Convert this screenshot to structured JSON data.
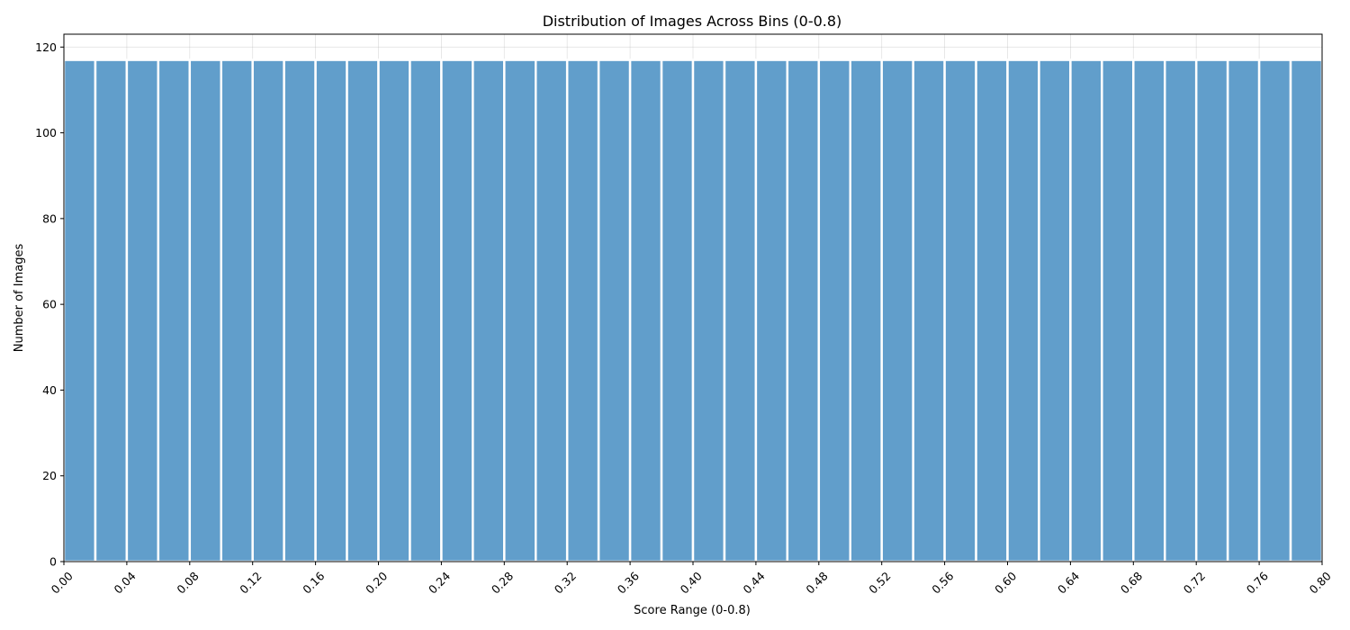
{
  "chart_data": {
    "type": "bar",
    "title": "Distribution of Images Across Bins (0-0.8)",
    "xlabel": "Score Range (0-0.8)",
    "ylabel": "Number of Images",
    "xlim": [
      0,
      0.8
    ],
    "ylim": [
      0,
      123
    ],
    "bin_width": 0.02,
    "bins": [
      0.0,
      0.02,
      0.04,
      0.06,
      0.08,
      0.1,
      0.12,
      0.14,
      0.16,
      0.18,
      0.2,
      0.22,
      0.24,
      0.26,
      0.28,
      0.3,
      0.32,
      0.34,
      0.36,
      0.38,
      0.4,
      0.42,
      0.44,
      0.46,
      0.48,
      0.5,
      0.52,
      0.54,
      0.56,
      0.58,
      0.6,
      0.62,
      0.64,
      0.66,
      0.68,
      0.7,
      0.72,
      0.74,
      0.76,
      0.78
    ],
    "values": [
      117,
      117,
      117,
      117,
      117,
      117,
      117,
      117,
      117,
      117,
      117,
      117,
      117,
      117,
      117,
      117,
      117,
      117,
      117,
      117,
      117,
      117,
      117,
      117,
      117,
      117,
      117,
      117,
      117,
      117,
      117,
      117,
      117,
      117,
      117,
      117,
      117,
      117,
      117,
      117
    ],
    "xticks": [
      "0.00",
      "0.04",
      "0.08",
      "0.12",
      "0.16",
      "0.20",
      "0.24",
      "0.28",
      "0.32",
      "0.36",
      "0.40",
      "0.44",
      "0.48",
      "0.52",
      "0.56",
      "0.60",
      "0.64",
      "0.68",
      "0.72",
      "0.76",
      "0.80"
    ],
    "yticks": [
      "0",
      "20",
      "40",
      "60",
      "80",
      "100",
      "120"
    ],
    "grid": true,
    "bar_color": "#619ecb",
    "bar_edge_color": "#ffffff"
  }
}
